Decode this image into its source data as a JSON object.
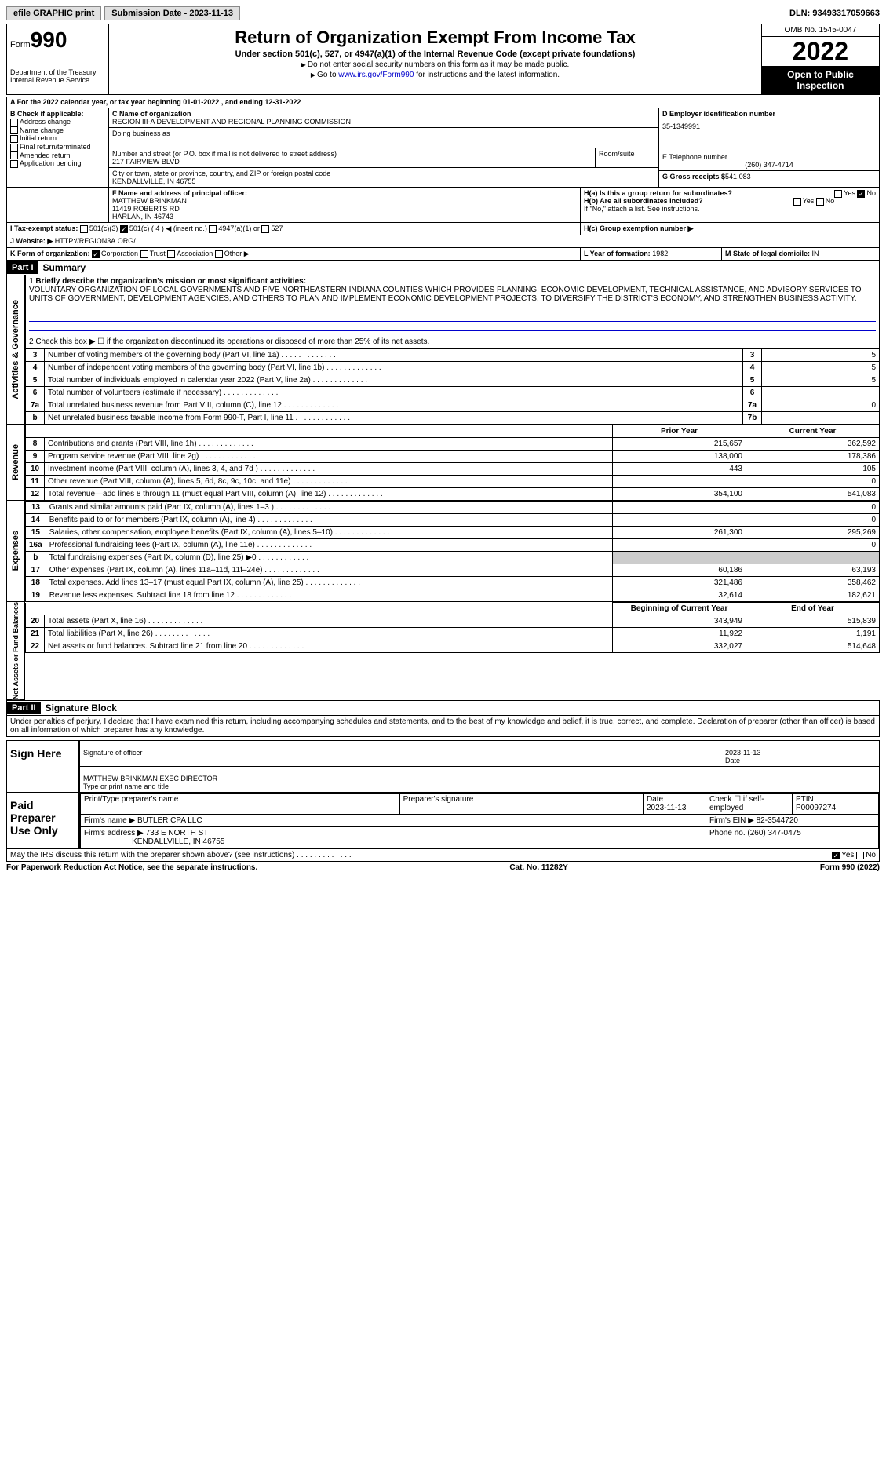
{
  "top": {
    "efile": "efile GRAPHIC print",
    "subdate_lbl": "Submission Date - ",
    "subdate": "2023-11-13",
    "dln_lbl": "DLN: ",
    "dln": "93493317059663"
  },
  "hdr": {
    "form": "Form",
    "num": "990",
    "dept": "Department of the Treasury",
    "irs": "Internal Revenue Service",
    "title": "Return of Organization Exempt From Income Tax",
    "sub": "Under section 501(c), 527, or 4947(a)(1) of the Internal Revenue Code (except private foundations)",
    "note1": "Do not enter social security numbers on this form as it may be made public.",
    "note2_a": "Go to ",
    "note2_link": "www.irs.gov/Form990",
    "note2_b": " for instructions and the latest information.",
    "omb": "OMB No. 1545-0047",
    "year": "2022",
    "open": "Open to Public Inspection"
  },
  "a": {
    "text": "For the 2022 calendar year, or tax year beginning ",
    "d1": "01-01-2022",
    "mid": " , and ending ",
    "d2": "12-31-2022"
  },
  "b": {
    "lbl": "B Check if applicable:",
    "o1": "Address change",
    "o2": "Name change",
    "o3": "Initial return",
    "o4": "Final return/terminated",
    "o5": "Amended return",
    "o6": "Application pending"
  },
  "c": {
    "name_lbl": "C Name of organization",
    "name": "REGION III-A DEVELOPMENT AND REGIONAL PLANNING COMMISSION",
    "dba": "Doing business as",
    "addr_lbl": "Number and street (or P.O. box if mail is not delivered to street address)",
    "addr": "217 FAIRVIEW BLVD",
    "room": "Room/suite",
    "city_lbl": "City or town, state or province, country, and ZIP or foreign postal code",
    "city": "KENDALLVILLE, IN  46755"
  },
  "d": {
    "lbl": "D Employer identification number",
    "val": "35-1349991"
  },
  "e": {
    "lbl": "E Telephone number",
    "val": "(260) 347-4714"
  },
  "g": {
    "lbl": "G Gross receipts $",
    "val": "541,083"
  },
  "f": {
    "lbl": "F Name and address of principal officer:",
    "name": "MATTHEW BRINKMAN",
    "addr1": "11419 ROBERTS RD",
    "addr2": "HARLAN, IN  46743"
  },
  "h": {
    "a": "H(a)  Is this a group return for subordinates?",
    "b": "H(b)  Are all subordinates included?",
    "bnote": "If \"No,\" attach a list. See instructions.",
    "c": "H(c)  Group exemption number ▶",
    "yes": "Yes",
    "no": "No"
  },
  "i": {
    "lbl": "I  Tax-exempt status:",
    "o1": "501(c)(3)",
    "o2": "501(c) ( 4 ) ◀ (insert no.)",
    "o3": "4947(a)(1) or",
    "o4": "527"
  },
  "j": {
    "lbl": "J  Website: ▶",
    "val": "HTTP://REGION3A.ORG/"
  },
  "k": {
    "lbl": "K Form of organization:",
    "o1": "Corporation",
    "o2": "Trust",
    "o3": "Association",
    "o4": "Other ▶"
  },
  "l": {
    "lbl": "L Year of formation:",
    "val": "1982"
  },
  "m": {
    "lbl": "M State of legal domicile:",
    "val": "IN"
  },
  "p1": {
    "part": "Part I",
    "title": "Summary",
    "vert1": "Activities & Governance",
    "vert2": "Revenue",
    "vert3": "Expenses",
    "vert4": "Net Assets or Fund Balances",
    "l1": "1  Briefly describe the organization's mission or most significant activities:",
    "l1v": "VOLUNTARY ORGANIZATION OF LOCAL GOVERNMENTS AND FIVE NORTHEASTERN INDIANA COUNTIES WHICH PROVIDES PLANNING, ECONOMIC DEVELOPMENT, TECHNICAL ASSISTANCE, AND ADVISORY SERVICES TO UNITS OF GOVERNMENT, DEVELOPMENT AGENCIES, AND OTHERS TO PLAN AND IMPLEMENT ECONOMIC DEVELOPMENT PROJECTS, TO DIVERSIFY THE DISTRICT'S ECONOMY, AND STRENGTHEN BUSINESS ACTIVITY.",
    "l2": "2  Check this box ▶ ☐ if the organization discontinued its operations or disposed of more than 25% of its net assets.",
    "rows1": [
      {
        "n": "3",
        "t": "Number of voting members of the governing body (Part VI, line 1a)",
        "r": "3",
        "v": "5"
      },
      {
        "n": "4",
        "t": "Number of independent voting members of the governing body (Part VI, line 1b)",
        "r": "4",
        "v": "5"
      },
      {
        "n": "5",
        "t": "Total number of individuals employed in calendar year 2022 (Part V, line 2a)",
        "r": "5",
        "v": "5"
      },
      {
        "n": "6",
        "t": "Total number of volunteers (estimate if necessary)",
        "r": "6",
        "v": ""
      },
      {
        "n": "7a",
        "t": "Total unrelated business revenue from Part VIII, column (C), line 12",
        "r": "7a",
        "v": "0"
      },
      {
        "n": "b",
        "t": "Net unrelated business taxable income from Form 990-T, Part I, line 11",
        "r": "7b",
        "v": ""
      }
    ],
    "ch": {
      "py": "Prior Year",
      "cy": "Current Year",
      "bcy": "Beginning of Current Year",
      "eoy": "End of Year"
    },
    "rows2": [
      {
        "n": "8",
        "t": "Contributions and grants (Part VIII, line 1h)",
        "p": "215,657",
        "c": "362,592"
      },
      {
        "n": "9",
        "t": "Program service revenue (Part VIII, line 2g)",
        "p": "138,000",
        "c": "178,386"
      },
      {
        "n": "10",
        "t": "Investment income (Part VIII, column (A), lines 3, 4, and 7d )",
        "p": "443",
        "c": "105"
      },
      {
        "n": "11",
        "t": "Other revenue (Part VIII, column (A), lines 5, 6d, 8c, 9c, 10c, and 11e)",
        "p": "",
        "c": "0"
      },
      {
        "n": "12",
        "t": "Total revenue—add lines 8 through 11 (must equal Part VIII, column (A), line 12)",
        "p": "354,100",
        "c": "541,083"
      }
    ],
    "rows3": [
      {
        "n": "13",
        "t": "Grants and similar amounts paid (Part IX, column (A), lines 1–3 )",
        "p": "",
        "c": "0"
      },
      {
        "n": "14",
        "t": "Benefits paid to or for members (Part IX, column (A), line 4)",
        "p": "",
        "c": "0"
      },
      {
        "n": "15",
        "t": "Salaries, other compensation, employee benefits (Part IX, column (A), lines 5–10)",
        "p": "261,300",
        "c": "295,269"
      },
      {
        "n": "16a",
        "t": "Professional fundraising fees (Part IX, column (A), line 11e)",
        "p": "",
        "c": "0"
      },
      {
        "n": "b",
        "t": "Total fundraising expenses (Part IX, column (D), line 25) ▶0",
        "p": "gray",
        "c": "gray"
      },
      {
        "n": "17",
        "t": "Other expenses (Part IX, column (A), lines 11a–11d, 11f–24e)",
        "p": "60,186",
        "c": "63,193"
      },
      {
        "n": "18",
        "t": "Total expenses. Add lines 13–17 (must equal Part IX, column (A), line 25)",
        "p": "321,486",
        "c": "358,462"
      },
      {
        "n": "19",
        "t": "Revenue less expenses. Subtract line 18 from line 12",
        "p": "32,614",
        "c": "182,621"
      }
    ],
    "rows4": [
      {
        "n": "20",
        "t": "Total assets (Part X, line 16)",
        "p": "343,949",
        "c": "515,839"
      },
      {
        "n": "21",
        "t": "Total liabilities (Part X, line 26)",
        "p": "11,922",
        "c": "1,191"
      },
      {
        "n": "22",
        "t": "Net assets or fund balances. Subtract line 21 from line 20",
        "p": "332,027",
        "c": "514,648"
      }
    ]
  },
  "p2": {
    "part": "Part II",
    "title": "Signature Block",
    "decl": "Under penalties of perjury, I declare that I have examined this return, including accompanying schedules and statements, and to the best of my knowledge and belief, it is true, correct, and complete. Declaration of preparer (other than officer) is based on all information of which preparer has any knowledge.",
    "sign": "Sign Here",
    "sig_lbl": "Signature of officer",
    "date_lbl": "Date",
    "date": "2023-11-13",
    "name": "MATTHEW BRINKMAN  EXEC DIRECTOR",
    "name_lbl": "Type or print name and title",
    "paid": "Paid Preparer Use Only",
    "pn_lbl": "Print/Type preparer's name",
    "ps_lbl": "Preparer's signature",
    "pd": "2023-11-13",
    "ck_lbl": "Check ☐ if self-employed",
    "ptin_lbl": "PTIN",
    "ptin": "P00097274",
    "fn_lbl": "Firm's name ▶",
    "fn": "BUTLER CPA LLC",
    "fe_lbl": "Firm's EIN ▶",
    "fe": "82-3544720",
    "fa_lbl": "Firm's address ▶",
    "fa1": "733 E NORTH ST",
    "fa2": "KENDALLVILLE, IN  46755",
    "ph_lbl": "Phone no.",
    "ph": "(260) 347-0475",
    "disc": "May the IRS discuss this return with the preparer shown above? (see instructions)"
  },
  "ft": {
    "l": "For Paperwork Reduction Act Notice, see the separate instructions.",
    "c": "Cat. No. 11282Y",
    "r": "Form 990 (2022)"
  }
}
